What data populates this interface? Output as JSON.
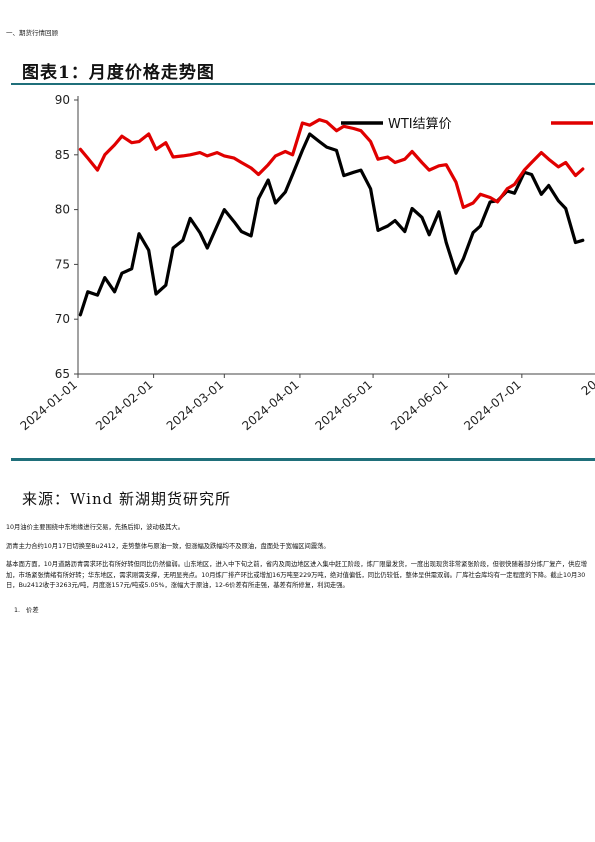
{
  "page": {
    "section_heading": "一、期货行情回顾",
    "figure_title": "图表1：月度价格走势图",
    "source": "来源：Wind 新湖期货研究所",
    "paragraphs": [
      "10月油价主要围绕中东地缘进行交易，先扬后抑，波动极其大。",
      "沥青主力合约10月17日切换至Bu2412，走势整体与原油一致，但涨幅及跌幅均不及原油，盘面处于宽幅区间震荡。",
      "基本面方面，10月道路沥青需求环比有所好转但同比仍然偏弱。山东地区，进入中下旬之前，省内及周边地区进入集中赶工阶段，炼厂限量发货，一度出现现货非常紧张阶段，但很快随着部分炼厂复产，供应增加，市场紧张情绪有所好转；华东地区，需求刚需支撑，无明显亮点。10月炼厂排产环比或增加16万吨至229万吨，绝对值偏低，同比仍较低，整体呈供需双弱。厂库社会库均有一定程度的下降。截止10月30日，Bu2412收于3263元/吨，月度涨157元/吨或5.05%，涨幅大于原油，12-6价差有所走强，基差有所修复，利润走强。"
    ],
    "list_item": {
      "number": "1.",
      "text": "价差"
    }
  },
  "chart_data": {
    "type": "line",
    "legend_position": "top-right",
    "legend_visible": [
      "WTI结算价",
      "沥"
    ],
    "ylim": [
      65,
      90
    ],
    "y_ticks": [
      65,
      70,
      75,
      80,
      85,
      90
    ],
    "x_ticks": [
      "2024-01-01",
      "2024-02-01",
      "2024-03-01",
      "2024-04-01",
      "2024-05-01",
      "2024-06-01",
      "2024-07-01",
      "20"
    ],
    "grid": false,
    "colors": {
      "WTI结算价": "#000000",
      "沥青": "#e00000",
      "frame": "#1f6f7a"
    },
    "series": [
      {
        "name": "WTI结算价",
        "x": [
          "2024-01-02",
          "2024-01-05",
          "2024-01-09",
          "2024-01-12",
          "2024-01-16",
          "2024-01-19",
          "2024-01-23",
          "2024-01-26",
          "2024-01-30",
          "2024-02-02",
          "2024-02-06",
          "2024-02-09",
          "2024-02-13",
          "2024-02-16",
          "2024-02-20",
          "2024-02-23",
          "2024-02-27",
          "2024-03-01",
          "2024-03-05",
          "2024-03-08",
          "2024-03-12",
          "2024-03-15",
          "2024-03-19",
          "2024-03-22",
          "2024-03-26",
          "2024-03-29",
          "2024-04-02",
          "2024-04-05",
          "2024-04-09",
          "2024-04-12",
          "2024-04-16",
          "2024-04-19",
          "2024-04-23",
          "2024-04-26",
          "2024-04-30",
          "2024-05-03",
          "2024-05-07",
          "2024-05-10",
          "2024-05-14",
          "2024-05-17",
          "2024-05-21",
          "2024-05-24",
          "2024-05-28",
          "2024-05-31",
          "2024-06-04",
          "2024-06-07",
          "2024-06-11",
          "2024-06-14",
          "2024-06-18",
          "2024-06-21",
          "2024-06-25",
          "2024-06-28",
          "2024-07-02",
          "2024-07-05",
          "2024-07-09",
          "2024-07-12",
          "2024-07-16",
          "2024-07-19",
          "2024-07-23",
          "2024-07-26"
        ],
        "values": [
          70.4,
          72.5,
          72.2,
          73.8,
          72.5,
          74.2,
          74.6,
          77.8,
          76.3,
          72.3,
          73.1,
          76.5,
          77.2,
          79.2,
          77.9,
          76.5,
          78.5,
          80.0,
          78.9,
          78.0,
          77.6,
          81.0,
          82.7,
          80.6,
          81.6,
          83.2,
          85.4,
          86.9,
          86.2,
          85.7,
          85.4,
          83.1,
          83.4,
          83.6,
          81.9,
          78.1,
          78.5,
          79.0,
          78.0,
          80.1,
          79.3,
          77.7,
          79.8,
          77.0,
          74.2,
          75.5,
          77.9,
          78.5,
          80.7,
          80.8,
          81.7,
          81.5,
          83.4,
          83.2,
          81.4,
          82.2,
          80.8,
          80.1,
          77.0,
          77.2
        ]
      },
      {
        "name": "沥青",
        "x": [
          "2024-01-02",
          "2024-01-05",
          "2024-01-09",
          "2024-01-12",
          "2024-01-16",
          "2024-01-19",
          "2024-01-23",
          "2024-01-26",
          "2024-01-30",
          "2024-02-02",
          "2024-02-06",
          "2024-02-09",
          "2024-02-13",
          "2024-02-16",
          "2024-02-20",
          "2024-02-23",
          "2024-02-27",
          "2024-03-01",
          "2024-03-05",
          "2024-03-08",
          "2024-03-12",
          "2024-03-15",
          "2024-03-19",
          "2024-03-22",
          "2024-03-26",
          "2024-03-29",
          "2024-04-02",
          "2024-04-05",
          "2024-04-09",
          "2024-04-12",
          "2024-04-16",
          "2024-04-19",
          "2024-04-23",
          "2024-04-26",
          "2024-04-30",
          "2024-05-03",
          "2024-05-07",
          "2024-05-10",
          "2024-05-14",
          "2024-05-17",
          "2024-05-21",
          "2024-05-24",
          "2024-05-28",
          "2024-05-31",
          "2024-06-04",
          "2024-06-07",
          "2024-06-11",
          "2024-06-14",
          "2024-06-18",
          "2024-06-21",
          "2024-06-25",
          "2024-06-28",
          "2024-07-02",
          "2024-07-05",
          "2024-07-09",
          "2024-07-12",
          "2024-07-16",
          "2024-07-19",
          "2024-07-23",
          "2024-07-26"
        ],
        "values": [
          85.5,
          84.7,
          83.6,
          85.0,
          85.9,
          86.7,
          86.1,
          86.2,
          86.9,
          85.5,
          86.1,
          84.8,
          84.9,
          85.0,
          85.2,
          84.9,
          85.2,
          84.9,
          84.7,
          84.3,
          83.8,
          83.2,
          84.1,
          84.9,
          85.3,
          85.0,
          87.9,
          87.7,
          88.2,
          88.0,
          87.2,
          87.6,
          87.4,
          87.2,
          86.2,
          84.6,
          84.8,
          84.3,
          84.6,
          85.3,
          84.3,
          83.6,
          84.0,
          84.1,
          82.5,
          80.2,
          80.6,
          81.4,
          81.1,
          80.7,
          81.9,
          82.3,
          83.6,
          84.3,
          85.2,
          84.6,
          83.9,
          84.3,
          83.1,
          83.7
        ]
      }
    ]
  }
}
